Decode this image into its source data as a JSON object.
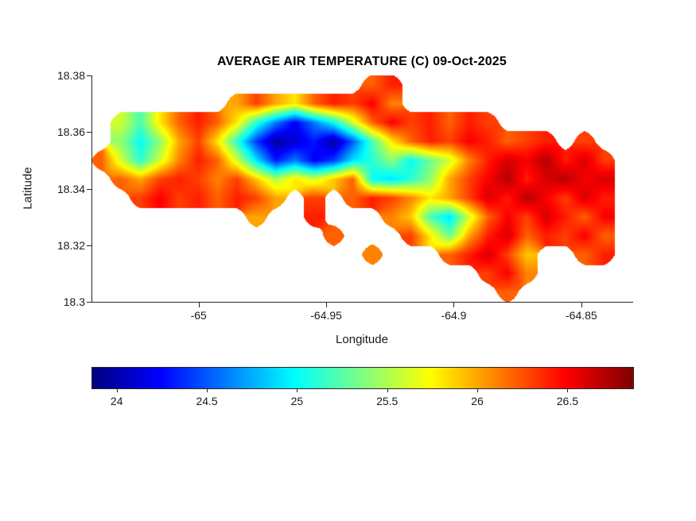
{
  "background_color": "#ffffff",
  "chart_data": {
    "type": "heatmap",
    "title": "AVERAGE AIR TEMPERATURE (C) 09-Oct-2025",
    "xlabel": "Longitude",
    "ylabel": "Latitude",
    "xlim": [
      -65.042,
      -64.83
    ],
    "ylim": [
      18.3,
      18.38
    ],
    "xticks": [
      -65,
      -64.95,
      -64.9,
      -64.85
    ],
    "xtick_labels": [
      "-65",
      "-64.95",
      "-64.9",
      "-64.85"
    ],
    "yticks": [
      18.3,
      18.32,
      18.34,
      18.36,
      18.38
    ],
    "ytick_labels": [
      "18.3",
      "18.32",
      "18.34",
      "18.36",
      "18.38"
    ],
    "colormap": "jet",
    "value_range": [
      23.86,
      26.86
    ],
    "colorbar_ticks": [
      24,
      24.5,
      25,
      25.5,
      26,
      26.5
    ],
    "colorbar_tick_labels": [
      "24",
      "24.5",
      "25",
      "25.5",
      "26",
      "26.5"
    ],
    "grid_note": "Coarse grid of average air temperature (C); null = no data (sea). Rows top (lat 18.38) to bottom (lat 18.30), cols west (-65.042) to east (-64.83).",
    "values": [
      [
        null,
        null,
        null,
        null,
        null,
        null,
        null,
        null,
        null,
        null,
        null,
        null,
        null,
        null,
        26.2,
        26.4,
        null,
        null,
        null,
        null,
        null,
        null,
        null,
        null,
        null,
        null,
        null,
        null
      ],
      [
        null,
        null,
        null,
        null,
        null,
        null,
        null,
        26.0,
        26.3,
        26.0,
        25.8,
        26.2,
        26.4,
        26.3,
        26.5,
        26.1,
        null,
        null,
        null,
        null,
        null,
        null,
        null,
        null,
        null,
        null,
        null,
        null
      ],
      [
        null,
        25.6,
        25.2,
        25.8,
        26.2,
        26.4,
        26.2,
        25.8,
        25.1,
        24.6,
        24.2,
        24.6,
        25.0,
        25.6,
        26.2,
        26.5,
        26.3,
        26.4,
        26.2,
        26.4,
        26.3,
        null,
        null,
        null,
        null,
        null,
        null,
        null
      ],
      [
        null,
        25.4,
        25.0,
        25.4,
        26.0,
        26.3,
        25.8,
        25.1,
        24.4,
        23.95,
        24.1,
        24.3,
        23.95,
        24.5,
        25.2,
        25.8,
        26.2,
        26.4,
        26.3,
        26.5,
        26.4,
        26.2,
        26.3,
        26.4,
        null,
        26.3,
        null,
        null
      ],
      [
        26.2,
        25.6,
        25.1,
        25.6,
        26.1,
        26.4,
        26.2,
        25.6,
        24.9,
        24.3,
        24.6,
        24.2,
        24.4,
        24.9,
        25.1,
        25.4,
        25.0,
        25.3,
        25.6,
        26.1,
        26.4,
        26.6,
        26.5,
        26.7,
        26.4,
        26.6,
        26.3,
        null
      ],
      [
        null,
        26.2,
        26.0,
        26.3,
        26.4,
        26.3,
        26.1,
        26.3,
        25.9,
        25.5,
        25.8,
        25.6,
        25.9,
        26.2,
        25.0,
        24.9,
        25.1,
        25.4,
        26.0,
        26.3,
        26.5,
        26.7,
        26.4,
        26.6,
        26.7,
        26.5,
        26.6,
        null
      ],
      [
        null,
        null,
        26.3,
        26.5,
        26.3,
        26.4,
        26.2,
        26.4,
        26.3,
        26.0,
        null,
        26.3,
        null,
        26.2,
        26.4,
        26.3,
        26.1,
        25.8,
        26.0,
        26.3,
        26.6,
        26.4,
        26.7,
        26.5,
        26.3,
        26.6,
        26.4,
        null
      ],
      [
        null,
        null,
        null,
        null,
        null,
        null,
        null,
        null,
        26.0,
        null,
        null,
        26.4,
        null,
        null,
        null,
        26.1,
        25.9,
        25.2,
        24.9,
        25.6,
        26.2,
        26.5,
        26.3,
        26.6,
        26.4,
        26.2,
        26.5,
        null
      ],
      [
        null,
        null,
        null,
        null,
        null,
        null,
        null,
        null,
        null,
        null,
        null,
        null,
        26.2,
        null,
        null,
        null,
        26.3,
        25.8,
        25.3,
        26.0,
        26.4,
        26.6,
        26.2,
        26.4,
        26.3,
        26.5,
        26.2,
        null
      ],
      [
        null,
        null,
        null,
        null,
        null,
        null,
        null,
        null,
        null,
        null,
        null,
        null,
        null,
        null,
        26.1,
        null,
        null,
        null,
        26.2,
        26.4,
        26.6,
        26.3,
        25.9,
        null,
        null,
        26.2,
        26.4,
        null
      ],
      [
        null,
        null,
        null,
        null,
        null,
        null,
        null,
        null,
        null,
        null,
        null,
        null,
        null,
        null,
        null,
        null,
        null,
        null,
        null,
        null,
        26.3,
        26.5,
        26.1,
        null,
        null,
        null,
        null,
        null
      ],
      [
        null,
        null,
        null,
        null,
        null,
        null,
        null,
        null,
        null,
        null,
        null,
        null,
        null,
        null,
        null,
        null,
        null,
        null,
        null,
        null,
        null,
        26.2,
        null,
        null,
        null,
        null,
        null,
        null
      ]
    ]
  }
}
